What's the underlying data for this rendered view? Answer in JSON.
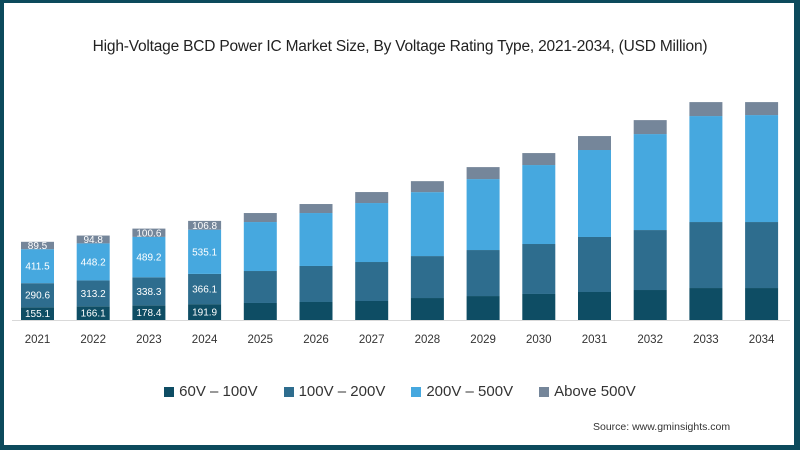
{
  "chart_data": {
    "type": "bar",
    "stacked": true,
    "title": "High-Voltage BCD Power IC Market Size, By Voltage Rating Type, 2021-2034, (USD Million)",
    "xlabel": "",
    "ylabel": "",
    "ylim": [
      0,
      2700
    ],
    "grid": false,
    "legend_position": "bottom",
    "categories": [
      "2021",
      "2022",
      "2023",
      "2024",
      "2025",
      "2026",
      "2027",
      "2028",
      "2029",
      "2030",
      "2031",
      "2032",
      "2033",
      "2034"
    ],
    "series": [
      {
        "name": "60V – 100V",
        "color": "#0e4d64",
        "values": [
          155.1,
          166.1,
          178.4,
          191.9,
          206,
          218,
          230,
          266,
          290,
          315,
          339,
          363,
          387,
          387
        ],
        "labels_shown": [
          true,
          true,
          true,
          true,
          false,
          false,
          false,
          false,
          false,
          false,
          false,
          false,
          false,
          false
        ]
      },
      {
        "name": "100V – 200V",
        "color": "#2e6d8e",
        "values": [
          290.6,
          313.2,
          338.3,
          366.1,
          387,
          436,
          472,
          508,
          557,
          605,
          666,
          726,
          799,
          799
        ],
        "labels_shown": [
          true,
          true,
          true,
          true,
          false,
          false,
          false,
          false,
          false,
          false,
          false,
          false,
          false,
          false
        ]
      },
      {
        "name": "200V – 500V",
        "color": "#46a8df",
        "values": [
          411.5,
          448.2,
          489.2,
          535.1,
          593,
          641,
          714,
          774,
          859,
          956,
          1053,
          1162,
          1283,
          1295
        ],
        "labels_shown": [
          true,
          true,
          true,
          true,
          false,
          false,
          false,
          false,
          false,
          false,
          false,
          false,
          false,
          false
        ]
      },
      {
        "name": "Above 500V",
        "color": "#75869a",
        "values": [
          89.5,
          94.8,
          100.6,
          106.8,
          109,
          109,
          133,
          133,
          145,
          145,
          169,
          169,
          169,
          157
        ],
        "labels_shown": [
          true,
          true,
          true,
          true,
          false,
          false,
          false,
          false,
          false,
          false,
          false,
          false,
          false,
          false
        ]
      }
    ]
  },
  "source": "Source: www.gminsights.com"
}
